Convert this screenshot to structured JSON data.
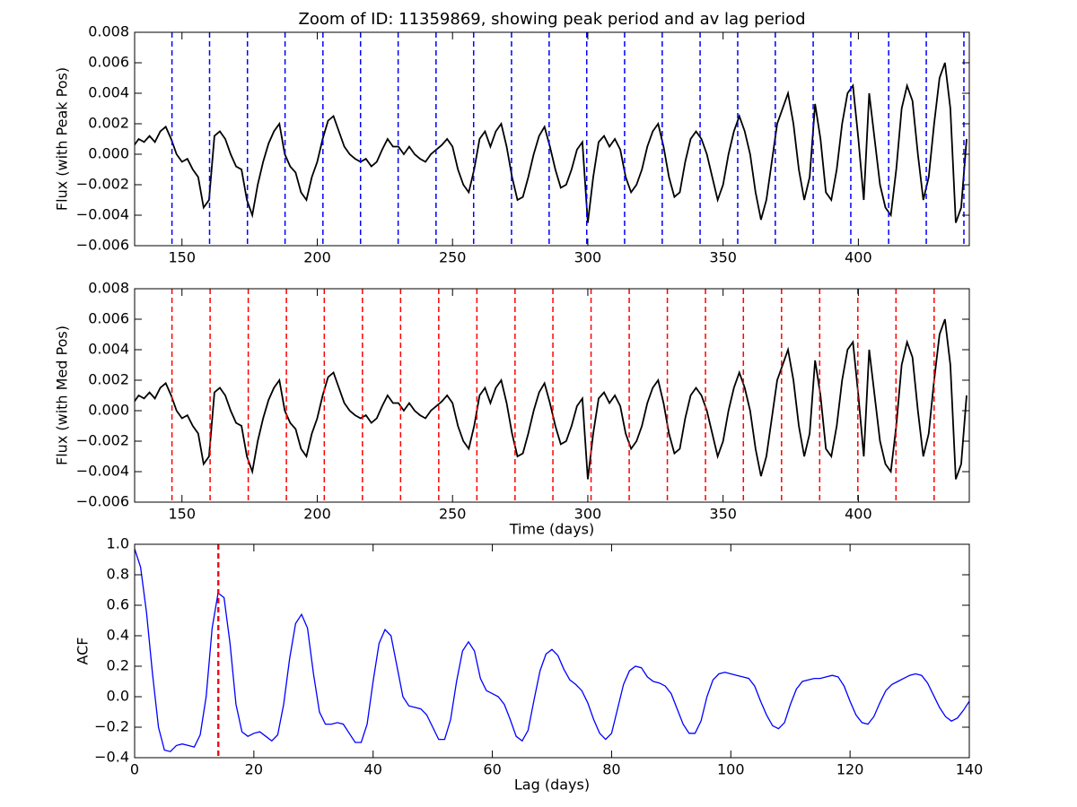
{
  "chart_data": [
    {
      "type": "line",
      "title": "Zoom of ID: 11359869, showing peak period and av lag period",
      "ylabel": "Flux (with Peak Pos)",
      "color": "#000000",
      "x": [
        132,
        134,
        136,
        138,
        140,
        142,
        144,
        146,
        148,
        150,
        152,
        154,
        156,
        158,
        160,
        162,
        164,
        166,
        168,
        170,
        172,
        174,
        176,
        178,
        180,
        182,
        184,
        186,
        188,
        190,
        192,
        194,
        196,
        198,
        200,
        202,
        204,
        206,
        208,
        210,
        212,
        214,
        216,
        218,
        220,
        222,
        224,
        226,
        228,
        230,
        232,
        234,
        236,
        238,
        240,
        242,
        244,
        246,
        248,
        250,
        252,
        254,
        256,
        258,
        260,
        262,
        264,
        266,
        268,
        270,
        272,
        274,
        276,
        278,
        280,
        282,
        284,
        286,
        288,
        290,
        292,
        294,
        296,
        298,
        300,
        302,
        304,
        306,
        308,
        310,
        312,
        314,
        316,
        318,
        320,
        322,
        324,
        326,
        328,
        330,
        332,
        334,
        336,
        338,
        340,
        342,
        344,
        346,
        348,
        350,
        352,
        354,
        356,
        358,
        360,
        362,
        364,
        366,
        368,
        370,
        372,
        374,
        376,
        378,
        380,
        382,
        384,
        386,
        388,
        390,
        392,
        394,
        396,
        398,
        400,
        402,
        404,
        406,
        408,
        410,
        412,
        414,
        416,
        418,
        420,
        422,
        424,
        426,
        428,
        430,
        432,
        434,
        436,
        438,
        440
      ],
      "values": [
        0.0005,
        0.001,
        0.0008,
        0.0012,
        0.0008,
        0.0015,
        0.0018,
        0.001,
        0,
        -0.0005,
        -0.0003,
        -0.001,
        -0.0015,
        -0.0035,
        -0.003,
        0.0012,
        0.0015,
        0.001,
        0,
        -0.0008,
        -0.001,
        -0.003,
        -0.004,
        -0.002,
        -0.0005,
        0.0007,
        0.0015,
        0.002,
        0,
        -0.0008,
        -0.0012,
        -0.0025,
        -0.003,
        -0.0015,
        -0.0005,
        0.001,
        0.0022,
        0.0025,
        0.0015,
        0.0005,
        0,
        -0.0003,
        -0.0005,
        -0.0003,
        -0.0008,
        -0.0005,
        0.0003,
        0.001,
        0.0005,
        0.0005,
        0,
        0.0005,
        0,
        -0.0003,
        -0.0005,
        0,
        0.0003,
        0.0006,
        0.001,
        0.0005,
        -0.001,
        -0.002,
        -0.0025,
        -0.001,
        0.001,
        0.0015,
        0.0005,
        0.0015,
        0.002,
        0.0005,
        -0.0015,
        -0.003,
        -0.0028,
        -0.0015,
        0,
        0.0012,
        0.0018,
        0.0005,
        -0.001,
        -0.0022,
        -0.002,
        -0.001,
        0.0003,
        0.0008,
        -0.0045,
        -0.0015,
        0.0008,
        0.0012,
        0.0005,
        0.001,
        0.0003,
        -0.0015,
        -0.0025,
        -0.002,
        -0.001,
        0.0005,
        0.0015,
        0.002,
        0.0005,
        -0.0015,
        -0.0028,
        -0.0025,
        -0.0005,
        0.001,
        0.0015,
        0.001,
        0,
        -0.0015,
        -0.003,
        -0.002,
        0,
        0.0015,
        0.0025,
        0.0015,
        0,
        -0.0025,
        -0.0043,
        -0.003,
        -0.0005,
        0.002,
        0.003,
        0.004,
        0.002,
        -0.001,
        -0.003,
        -0.0015,
        0.0033,
        0.001,
        -0.0025,
        -0.003,
        -0.001,
        0.002,
        0.004,
        0.0045,
        0.001,
        -0.003,
        0.004,
        0.001,
        -0.002,
        -0.0035,
        -0.004,
        -0.001,
        0.003,
        0.0045,
        0.0035,
        0,
        -0.003,
        -0.0015,
        0.002,
        0.005,
        0.006,
        0.003,
        -0.0045,
        -0.0035,
        0.001
      ],
      "vlines": {
        "color": "#0000ff",
        "values": [
          146.3,
          160.2,
          174.2,
          188.1,
          202.1,
          216.0,
          229.9,
          243.9,
          257.8,
          271.8,
          285.7,
          299.6,
          313.6,
          327.5,
          341.5,
          355.4,
          369.3,
          383.3,
          397.2,
          411.2,
          425.1,
          439.0
        ]
      },
      "xlim": [
        132.5,
        441
      ],
      "xticks": [
        150,
        200,
        250,
        300,
        350,
        400
      ],
      "ylim": [
        -0.006,
        0.008
      ],
      "yticks": [
        {
          "value": -0.006,
          "label": "−0.006"
        },
        {
          "value": -0.004,
          "label": "−0.004"
        },
        {
          "value": -0.002,
          "label": "−0.002"
        },
        {
          "value": 0,
          "label": "0.000"
        },
        0.002,
        0.004,
        0.006,
        0.008
      ]
    },
    {
      "type": "line",
      "ylabel": "Flux (with Med Pos)",
      "xlabel": "Time (days)",
      "color": "#000000",
      "x": [
        132,
        134,
        136,
        138,
        140,
        142,
        144,
        146,
        148,
        150,
        152,
        154,
        156,
        158,
        160,
        162,
        164,
        166,
        168,
        170,
        172,
        174,
        176,
        178,
        180,
        182,
        184,
        186,
        188,
        190,
        192,
        194,
        196,
        198,
        200,
        202,
        204,
        206,
        208,
        210,
        212,
        214,
        216,
        218,
        220,
        222,
        224,
        226,
        228,
        230,
        232,
        234,
        236,
        238,
        240,
        242,
        244,
        246,
        248,
        250,
        252,
        254,
        256,
        258,
        260,
        262,
        264,
        266,
        268,
        270,
        272,
        274,
        276,
        278,
        280,
        282,
        284,
        286,
        288,
        290,
        292,
        294,
        296,
        298,
        300,
        302,
        304,
        306,
        308,
        310,
        312,
        314,
        316,
        318,
        320,
        322,
        324,
        326,
        328,
        330,
        332,
        334,
        336,
        338,
        340,
        342,
        344,
        346,
        348,
        350,
        352,
        354,
        356,
        358,
        360,
        362,
        364,
        366,
        368,
        370,
        372,
        374,
        376,
        378,
        380,
        382,
        384,
        386,
        388,
        390,
        392,
        394,
        396,
        398,
        400,
        402,
        404,
        406,
        408,
        410,
        412,
        414,
        416,
        418,
        420,
        422,
        424,
        426,
        428,
        430,
        432,
        434,
        436,
        438,
        440
      ],
      "values": [
        0.0005,
        0.001,
        0.0008,
        0.0012,
        0.0008,
        0.0015,
        0.0018,
        0.001,
        0,
        -0.0005,
        -0.0003,
        -0.001,
        -0.0015,
        -0.0035,
        -0.003,
        0.0012,
        0.0015,
        0.001,
        0,
        -0.0008,
        -0.001,
        -0.003,
        -0.004,
        -0.002,
        -0.0005,
        0.0007,
        0.0015,
        0.002,
        0,
        -0.0008,
        -0.0012,
        -0.0025,
        -0.003,
        -0.0015,
        -0.0005,
        0.001,
        0.0022,
        0.0025,
        0.0015,
        0.0005,
        0,
        -0.0003,
        -0.0005,
        -0.0003,
        -0.0008,
        -0.0005,
        0.0003,
        0.001,
        0.0005,
        0.0005,
        0,
        0.0005,
        0,
        -0.0003,
        -0.0005,
        0,
        0.0003,
        0.0006,
        0.001,
        0.0005,
        -0.001,
        -0.002,
        -0.0025,
        -0.001,
        0.001,
        0.0015,
        0.0005,
        0.0015,
        0.002,
        0.0005,
        -0.0015,
        -0.003,
        -0.0028,
        -0.0015,
        0,
        0.0012,
        0.0018,
        0.0005,
        -0.001,
        -0.0022,
        -0.002,
        -0.001,
        0.0003,
        0.0008,
        -0.0045,
        -0.0015,
        0.0008,
        0.0012,
        0.0005,
        0.001,
        0.0003,
        -0.0015,
        -0.0025,
        -0.002,
        -0.001,
        0.0005,
        0.0015,
        0.002,
        0.0005,
        -0.0015,
        -0.0028,
        -0.0025,
        -0.0005,
        0.001,
        0.0015,
        0.001,
        0,
        -0.0015,
        -0.003,
        -0.002,
        0,
        0.0015,
        0.0025,
        0.0015,
        0,
        -0.0025,
        -0.0043,
        -0.003,
        -0.0005,
        0.002,
        0.003,
        0.004,
        0.002,
        -0.001,
        -0.003,
        -0.0015,
        0.0033,
        0.001,
        -0.0025,
        -0.003,
        -0.001,
        0.002,
        0.004,
        0.0045,
        0.001,
        -0.003,
        0.004,
        0.001,
        -0.002,
        -0.0035,
        -0.004,
        -0.001,
        0.003,
        0.0045,
        0.0035,
        0,
        -0.003,
        -0.0015,
        0.002,
        0.005,
        0.006,
        0.003,
        -0.0045,
        -0.0035,
        0.001
      ],
      "vlines": {
        "color": "#ff0000",
        "values": [
          146.3,
          160.4,
          174.5,
          188.6,
          202.6,
          216.7,
          230.8,
          244.9,
          259.0,
          273.1,
          287.1,
          301.2,
          315.3,
          329.4,
          343.5,
          357.5,
          371.6,
          385.7,
          399.8,
          413.9,
          428.0
        ]
      },
      "xlim": [
        132.5,
        441
      ],
      "xticks": [
        150,
        200,
        250,
        300,
        350,
        400
      ],
      "ylim": [
        -0.006,
        0.008
      ],
      "yticks": [
        {
          "value": -0.006,
          "label": "−0.006"
        },
        {
          "value": -0.004,
          "label": "−0.004"
        },
        {
          "value": -0.002,
          "label": "−0.002"
        },
        {
          "value": 0,
          "label": "0.000"
        },
        0.002,
        0.004,
        0.006,
        0.008
      ]
    },
    {
      "type": "line",
      "ylabel": "ACF",
      "xlabel": "Lag (days)",
      "color": "#0000ff",
      "x": [
        0,
        1,
        2,
        3,
        4,
        5,
        6,
        7,
        8,
        9,
        10,
        11,
        12,
        13,
        14,
        15,
        16,
        17,
        18,
        19,
        20,
        21,
        22,
        23,
        24,
        25,
        26,
        27,
        28,
        29,
        30,
        31,
        32,
        33,
        34,
        35,
        36,
        37,
        38,
        39,
        40,
        41,
        42,
        43,
        44,
        45,
        46,
        47,
        48,
        49,
        50,
        51,
        52,
        53,
        54,
        55,
        56,
        57,
        58,
        59,
        60,
        61,
        62,
        63,
        64,
        65,
        66,
        67,
        68,
        69,
        70,
        71,
        72,
        73,
        74,
        75,
        76,
        77,
        78,
        79,
        80,
        81,
        82,
        83,
        84,
        85,
        86,
        87,
        88,
        89,
        90,
        91,
        92,
        93,
        94,
        95,
        96,
        97,
        98,
        99,
        100,
        101,
        102,
        103,
        104,
        105,
        106,
        107,
        108,
        109,
        110,
        111,
        112,
        113,
        114,
        115,
        116,
        117,
        118,
        119,
        120,
        121,
        122,
        123,
        124,
        125,
        126,
        127,
        128,
        129,
        130,
        131,
        132,
        133,
        134,
        135,
        136,
        137,
        138,
        139,
        140
      ],
      "values": [
        0.97,
        0.85,
        0.55,
        0.15,
        -0.2,
        -0.35,
        -0.36,
        -0.32,
        -0.31,
        -0.32,
        -0.33,
        -0.25,
        0,
        0.45,
        0.68,
        0.65,
        0.35,
        -0.05,
        -0.23,
        -0.26,
        -0.24,
        -0.23,
        -0.26,
        -0.29,
        -0.25,
        -0.05,
        0.25,
        0.48,
        0.54,
        0.45,
        0.15,
        -0.1,
        -0.18,
        -0.18,
        -0.17,
        -0.18,
        -0.24,
        -0.3,
        -0.3,
        -0.18,
        0.1,
        0.35,
        0.44,
        0.4,
        0.2,
        0,
        -0.06,
        -0.07,
        -0.08,
        -0.12,
        -0.2,
        -0.28,
        -0.28,
        -0.15,
        0.1,
        0.3,
        0.36,
        0.3,
        0.12,
        0.04,
        0.02,
        0,
        -0.05,
        -0.15,
        -0.26,
        -0.29,
        -0.22,
        -0.02,
        0.17,
        0.28,
        0.31,
        0.27,
        0.18,
        0.11,
        0.08,
        0.04,
        -0.04,
        -0.15,
        -0.24,
        -0.28,
        -0.24,
        -0.08,
        0.08,
        0.17,
        0.2,
        0.19,
        0.13,
        0.1,
        0.09,
        0.07,
        0.02,
        -0.08,
        -0.18,
        -0.24,
        -0.24,
        -0.16,
        0,
        0.11,
        0.15,
        0.16,
        0.15,
        0.14,
        0.13,
        0.12,
        0.07,
        -0.03,
        -0.12,
        -0.19,
        -0.21,
        -0.17,
        -0.05,
        0.05,
        0.1,
        0.11,
        0.12,
        0.12,
        0.13,
        0.14,
        0.13,
        0.07,
        -0.03,
        -0.12,
        -0.17,
        -0.18,
        -0.13,
        -0.04,
        0.04,
        0.08,
        0.1,
        0.12,
        0.14,
        0.15,
        0.14,
        0.09,
        0.01,
        -0.07,
        -0.13,
        -0.16,
        -0.14,
        -0.09,
        -0.03
      ],
      "vlines_peak": {
        "color": "#0000ff",
        "values": [
          14.0
        ]
      },
      "vlines": {
        "color": "#ff0000",
        "values": [
          14.1
        ]
      },
      "xlim": [
        0,
        140
      ],
      "xticks": [
        0,
        20,
        40,
        60,
        80,
        100,
        120,
        140
      ],
      "ylim": [
        -0.4,
        1.0
      ],
      "yticks": [
        {
          "value": -0.4,
          "label": "−0.4"
        },
        {
          "value": -0.2,
          "label": "−0.2"
        },
        {
          "value": 0,
          "label": "0.0"
        },
        0.2,
        0.4,
        0.6,
        0.8,
        {
          "value": 1.0,
          "label": "1.0"
        }
      ]
    }
  ]
}
